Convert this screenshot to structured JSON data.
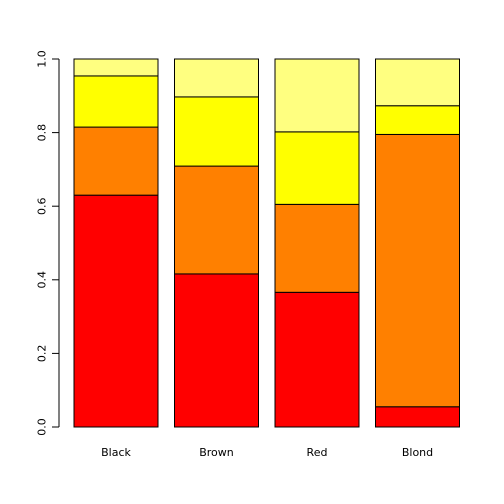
{
  "chart_data": {
    "type": "bar",
    "stacked": true,
    "categories": [
      "Black",
      "Brown",
      "Red",
      "Blond"
    ],
    "series": [
      {
        "color": "#ff0000",
        "values": [
          0.63,
          0.416,
          0.366,
          0.055
        ]
      },
      {
        "color": "#ff8000",
        "values": [
          0.185,
          0.293,
          0.239,
          0.74
        ]
      },
      {
        "color": "#ffff00",
        "values": [
          0.139,
          0.188,
          0.197,
          0.078
        ]
      },
      {
        "color": "#ffff80",
        "values": [
          0.046,
          0.103,
          0.198,
          0.127
        ]
      }
    ],
    "ylim": [
      0,
      1
    ],
    "yticks": [
      "0.0",
      "0.2",
      "0.4",
      "0.6",
      "0.8",
      "1.0"
    ],
    "title": "",
    "xlabel": "",
    "ylabel": "",
    "grid": false,
    "legend": "none"
  }
}
